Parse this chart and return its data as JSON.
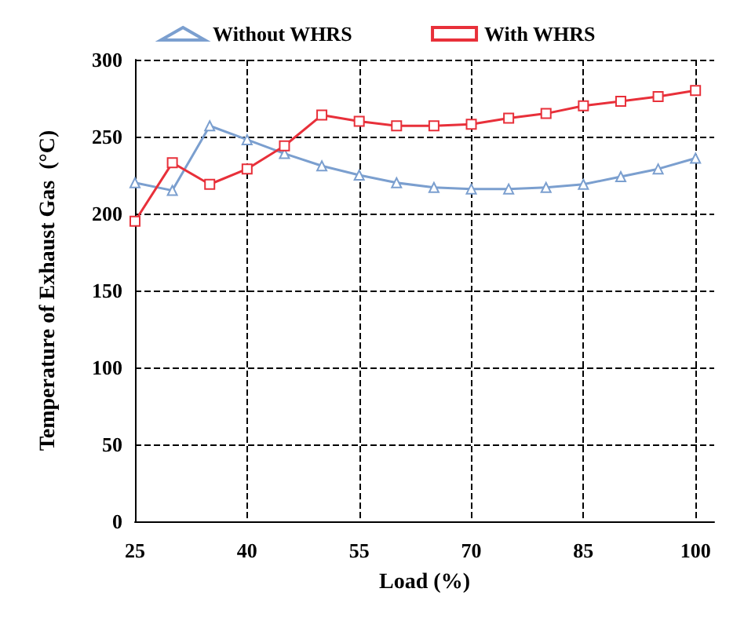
{
  "chart_data": {
    "type": "line",
    "xlabel": "Load (%)",
    "ylabel": "Temperature of Exhaust Gas  (°C)",
    "x": [
      25,
      30,
      35,
      40,
      45,
      50,
      55,
      60,
      65,
      70,
      75,
      80,
      85,
      90,
      95,
      100
    ],
    "xlim": [
      25,
      102.5
    ],
    "xticks": [
      25,
      40,
      55,
      70,
      85,
      100
    ],
    "ylim": [
      0,
      300
    ],
    "yticks": [
      0,
      50,
      100,
      150,
      200,
      250,
      300
    ],
    "grid": true,
    "legend": "top",
    "series": [
      {
        "name": "Without WHRS",
        "color": "#7b9fcf",
        "marker": "triangle",
        "values": [
          220,
          215,
          257,
          248,
          239,
          231,
          225,
          220,
          217,
          216,
          216,
          217,
          219,
          224,
          229,
          236
        ]
      },
      {
        "name": "With WHRS",
        "color": "#e8303a",
        "marker": "square",
        "values": [
          195,
          233,
          219,
          229,
          244,
          264,
          260,
          257,
          257,
          258,
          262,
          265,
          270,
          273,
          276,
          280
        ]
      }
    ]
  }
}
